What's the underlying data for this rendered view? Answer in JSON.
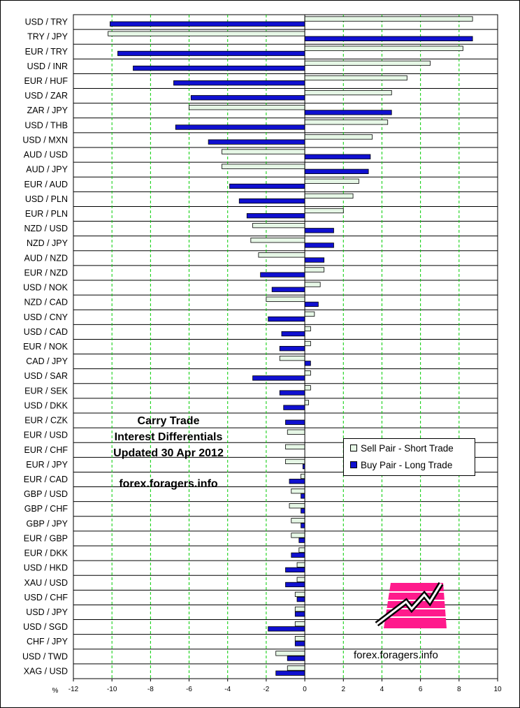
{
  "chart_data": {
    "type": "bar",
    "orientation": "horizontal",
    "categories": [
      "USD / TRY",
      "TRY / JPY",
      "EUR / TRY",
      "USD / INR",
      "EUR / HUF",
      "USD / ZAR",
      "ZAR / JPY",
      "USD / THB",
      "USD / MXN",
      "AUD / USD",
      "AUD / JPY",
      "EUR / AUD",
      "USD / PLN",
      "EUR / PLN",
      "NZD / USD",
      "NZD / JPY",
      "AUD / NZD",
      "EUR / NZD",
      "USD / NOK",
      "NZD / CAD",
      "USD / CNY",
      "USD / CAD",
      "EUR / NOK",
      "CAD / JPY",
      "USD / SAR",
      "EUR / SEK",
      "USD / DKK",
      "EUR / CZK",
      "EUR / USD",
      "EUR / CHF",
      "EUR / JPY",
      "EUR / CAD",
      "GBP / USD",
      "GBP / CHF",
      "GBP / JPY",
      "EUR / GBP",
      "EUR / DKK",
      "USD / HKD",
      "XAU / USD",
      "USD / CHF",
      "USD / JPY",
      "USD / SGD",
      "CHF / JPY",
      "USD / TWD",
      "XAG / USD"
    ],
    "series": [
      {
        "name": "Sell Pair - Short Trade",
        "color": "#e6f7e6",
        "values": [
          8.7,
          -10.2,
          8.2,
          6.5,
          5.3,
          4.5,
          -6.0,
          4.3,
          3.5,
          -4.3,
          -4.3,
          2.8,
          2.5,
          2.0,
          -2.7,
          -2.8,
          -2.4,
          1.0,
          0.8,
          -2.0,
          0.5,
          0.3,
          0.3,
          -1.3,
          0.3,
          0.3,
          0.2,
          0.0,
          -0.9,
          -1.0,
          -1.0,
          -0.2,
          -0.7,
          -0.8,
          -0.7,
          -0.7,
          -0.3,
          -0.4,
          -0.4,
          -0.5,
          -0.5,
          -0.5,
          -0.5,
          -1.5,
          -0.9
        ]
      },
      {
        "name": "Buy Pair - Long Trade",
        "color": "#1010d0",
        "values": [
          -10.1,
          8.7,
          -9.7,
          -8.9,
          -6.8,
          -5.9,
          4.5,
          -6.7,
          -5.0,
          3.4,
          3.3,
          -3.9,
          -3.4,
          -3.0,
          1.5,
          1.5,
          1.0,
          -2.3,
          -1.7,
          0.7,
          -1.9,
          -1.2,
          -1.3,
          0.3,
          -2.7,
          -1.3,
          -1.1,
          -1.0,
          0.0,
          0.0,
          -0.1,
          -0.8,
          -0.2,
          -0.2,
          -0.2,
          -0.3,
          -0.7,
          -1.0,
          -1.0,
          -0.4,
          -0.5,
          -1.9,
          -0.5,
          -0.9,
          -1.5
        ]
      }
    ],
    "xlim": [
      -12,
      10
    ],
    "xticks": [
      -12,
      -10,
      -8,
      -6,
      -4,
      -2,
      0,
      2,
      4,
      6,
      8,
      10
    ],
    "xlabel": "%",
    "grid": "vertical dashed green",
    "legend": "lower-right",
    "annotations": [
      "Carry Trade",
      "Interest Differentials",
      "Updated 30 Apr 2012",
      "forex.foragers.info",
      "forex.foragers.info"
    ]
  }
}
